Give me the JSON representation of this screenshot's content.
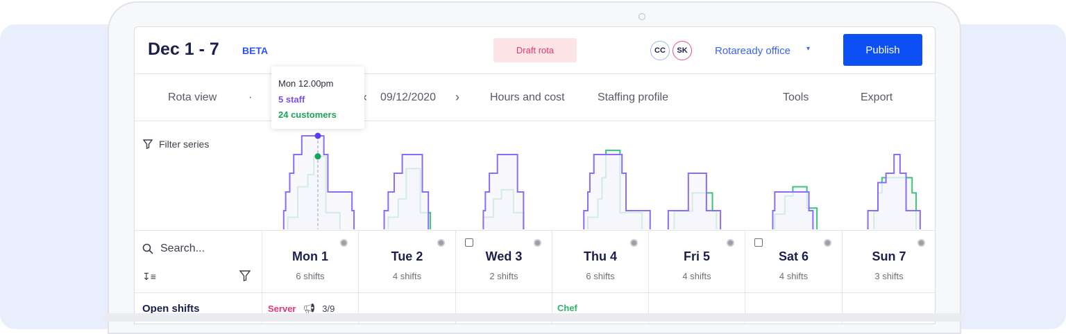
{
  "header": {
    "title": "Dec 1 - 7",
    "beta": "BETA",
    "status_badge": "Draft rota",
    "avatars": [
      "CC",
      "SK"
    ],
    "location": "Rotaready office",
    "publish_label": "Publish"
  },
  "nav": {
    "rota_view": "Rota view",
    "separator": "·",
    "date": "09/12/2020",
    "hours_and_cost": "Hours and cost",
    "staffing_profile": "Staffing profile",
    "tools": "Tools",
    "export": "Export"
  },
  "tooltip": {
    "time": "Mon 12.00pm",
    "staff": "5 staff",
    "customers": "24 customers"
  },
  "filter_label": "Filter series",
  "search_placeholder": "Search...",
  "days": [
    {
      "name": "Mon 1",
      "shifts": "6 shifts",
      "calendar": false
    },
    {
      "name": "Tue 2",
      "shifts": "4 shifts",
      "calendar": false
    },
    {
      "name": "Wed 3",
      "shifts": "2 shifts",
      "calendar": true
    },
    {
      "name": "Thu 4",
      "shifts": "6 shifts",
      "calendar": false
    },
    {
      "name": "Fri 5",
      "shifts": "4 shifts",
      "calendar": false
    },
    {
      "name": "Sat 6",
      "shifts": "4 shifts",
      "calendar": true
    },
    {
      "name": "Sun 7",
      "shifts": "3 shifts",
      "calendar": false
    }
  ],
  "open_shifts": {
    "label": "Open shifts",
    "mon": {
      "role": "Server",
      "count": "3/9"
    },
    "thu": {
      "role": "Chef"
    }
  },
  "colors": {
    "staff": "#8b6cf6",
    "customers": "#3cc47c",
    "staff_dot": "#5b3ff0",
    "customers_dot": "#1aa35a",
    "publish": "#0b4ff5",
    "draft": "#e8356b"
  },
  "chart_data": {
    "type": "line",
    "step": true,
    "x_unit": "hour of day",
    "hover": {
      "day": "Mon",
      "hour": 12,
      "staff": 5,
      "customers": 24
    },
    "series": [
      {
        "name": "staff",
        "days": [
          [
            [
              3.5,
              1
            ],
            [
              4,
              2
            ],
            [
              5,
              3
            ],
            [
              6,
              4
            ],
            [
              8,
              5
            ],
            [
              13.5,
              4
            ],
            [
              14.5,
              2
            ],
            [
              20.5,
              1
            ],
            [
              21,
              0
            ]
          ],
          [
            [
              4.5,
              1
            ],
            [
              5.5,
              2
            ],
            [
              7,
              3
            ],
            [
              9,
              4
            ],
            [
              14,
              2
            ],
            [
              15.5,
              0
            ]
          ],
          [
            [
              5,
              1
            ],
            [
              5.5,
              2
            ],
            [
              6.5,
              3
            ],
            [
              8.5,
              4
            ],
            [
              13.5,
              2
            ],
            [
              15,
              0
            ]
          ],
          [
            [
              6,
              1
            ],
            [
              7,
              2
            ],
            [
              7.5,
              3
            ],
            [
              8.5,
              4
            ],
            [
              15.5,
              3
            ],
            [
              16.5,
              1
            ],
            [
              22.5,
              0
            ]
          ],
          [
            [
              3,
              1
            ],
            [
              8,
              3
            ],
            [
              12.5,
              1
            ],
            [
              16,
              0
            ]
          ],
          [
            [
              5,
              1
            ],
            [
              5.5,
              2
            ],
            [
              14,
              1
            ],
            [
              15,
              0
            ]
          ],
          [
            [
              4.5,
              1
            ],
            [
              7,
              2.5
            ],
            [
              9,
              3
            ],
            [
              11,
              4
            ],
            [
              12.5,
              3
            ],
            [
              14,
              1
            ],
            [
              17.5,
              0
            ]
          ]
        ]
      },
      {
        "name": "customers",
        "days": [
          [
            [
              4.5,
              4
            ],
            [
              7,
              14
            ],
            [
              9.5,
              18
            ],
            [
              11,
              24
            ],
            [
              14,
              5.5
            ],
            [
              17.5,
              0
            ]
          ],
          [
            [
              5.5,
              4
            ],
            [
              8,
              10
            ],
            [
              10,
              20
            ],
            [
              13.5,
              5.5
            ],
            [
              16,
              0
            ]
          ],
          [
            [
              5,
              4
            ],
            [
              7.5,
              10
            ],
            [
              9.5,
              13
            ],
            [
              12.5,
              5.5
            ],
            [
              15,
              0
            ]
          ],
          [
            [
              7,
              4
            ],
            [
              9.5,
              10
            ],
            [
              10.5,
              17
            ],
            [
              11.5,
              26
            ],
            [
              15,
              5.5
            ],
            [
              20.5,
              0
            ]
          ],
          [
            [
              4.5,
              6
            ],
            [
              9,
              12
            ],
            [
              14,
              6
            ],
            [
              15,
              0
            ]
          ],
          [
            [
              5.5,
              5
            ],
            [
              8,
              11
            ],
            [
              10,
              14
            ],
            [
              13.5,
              7
            ],
            [
              16,
              0
            ]
          ],
          [
            [
              6,
              6
            ],
            [
              7,
              12
            ],
            [
              8,
              17
            ],
            [
              15.5,
              12
            ],
            [
              16.5,
              0
            ]
          ]
        ]
      }
    ]
  }
}
